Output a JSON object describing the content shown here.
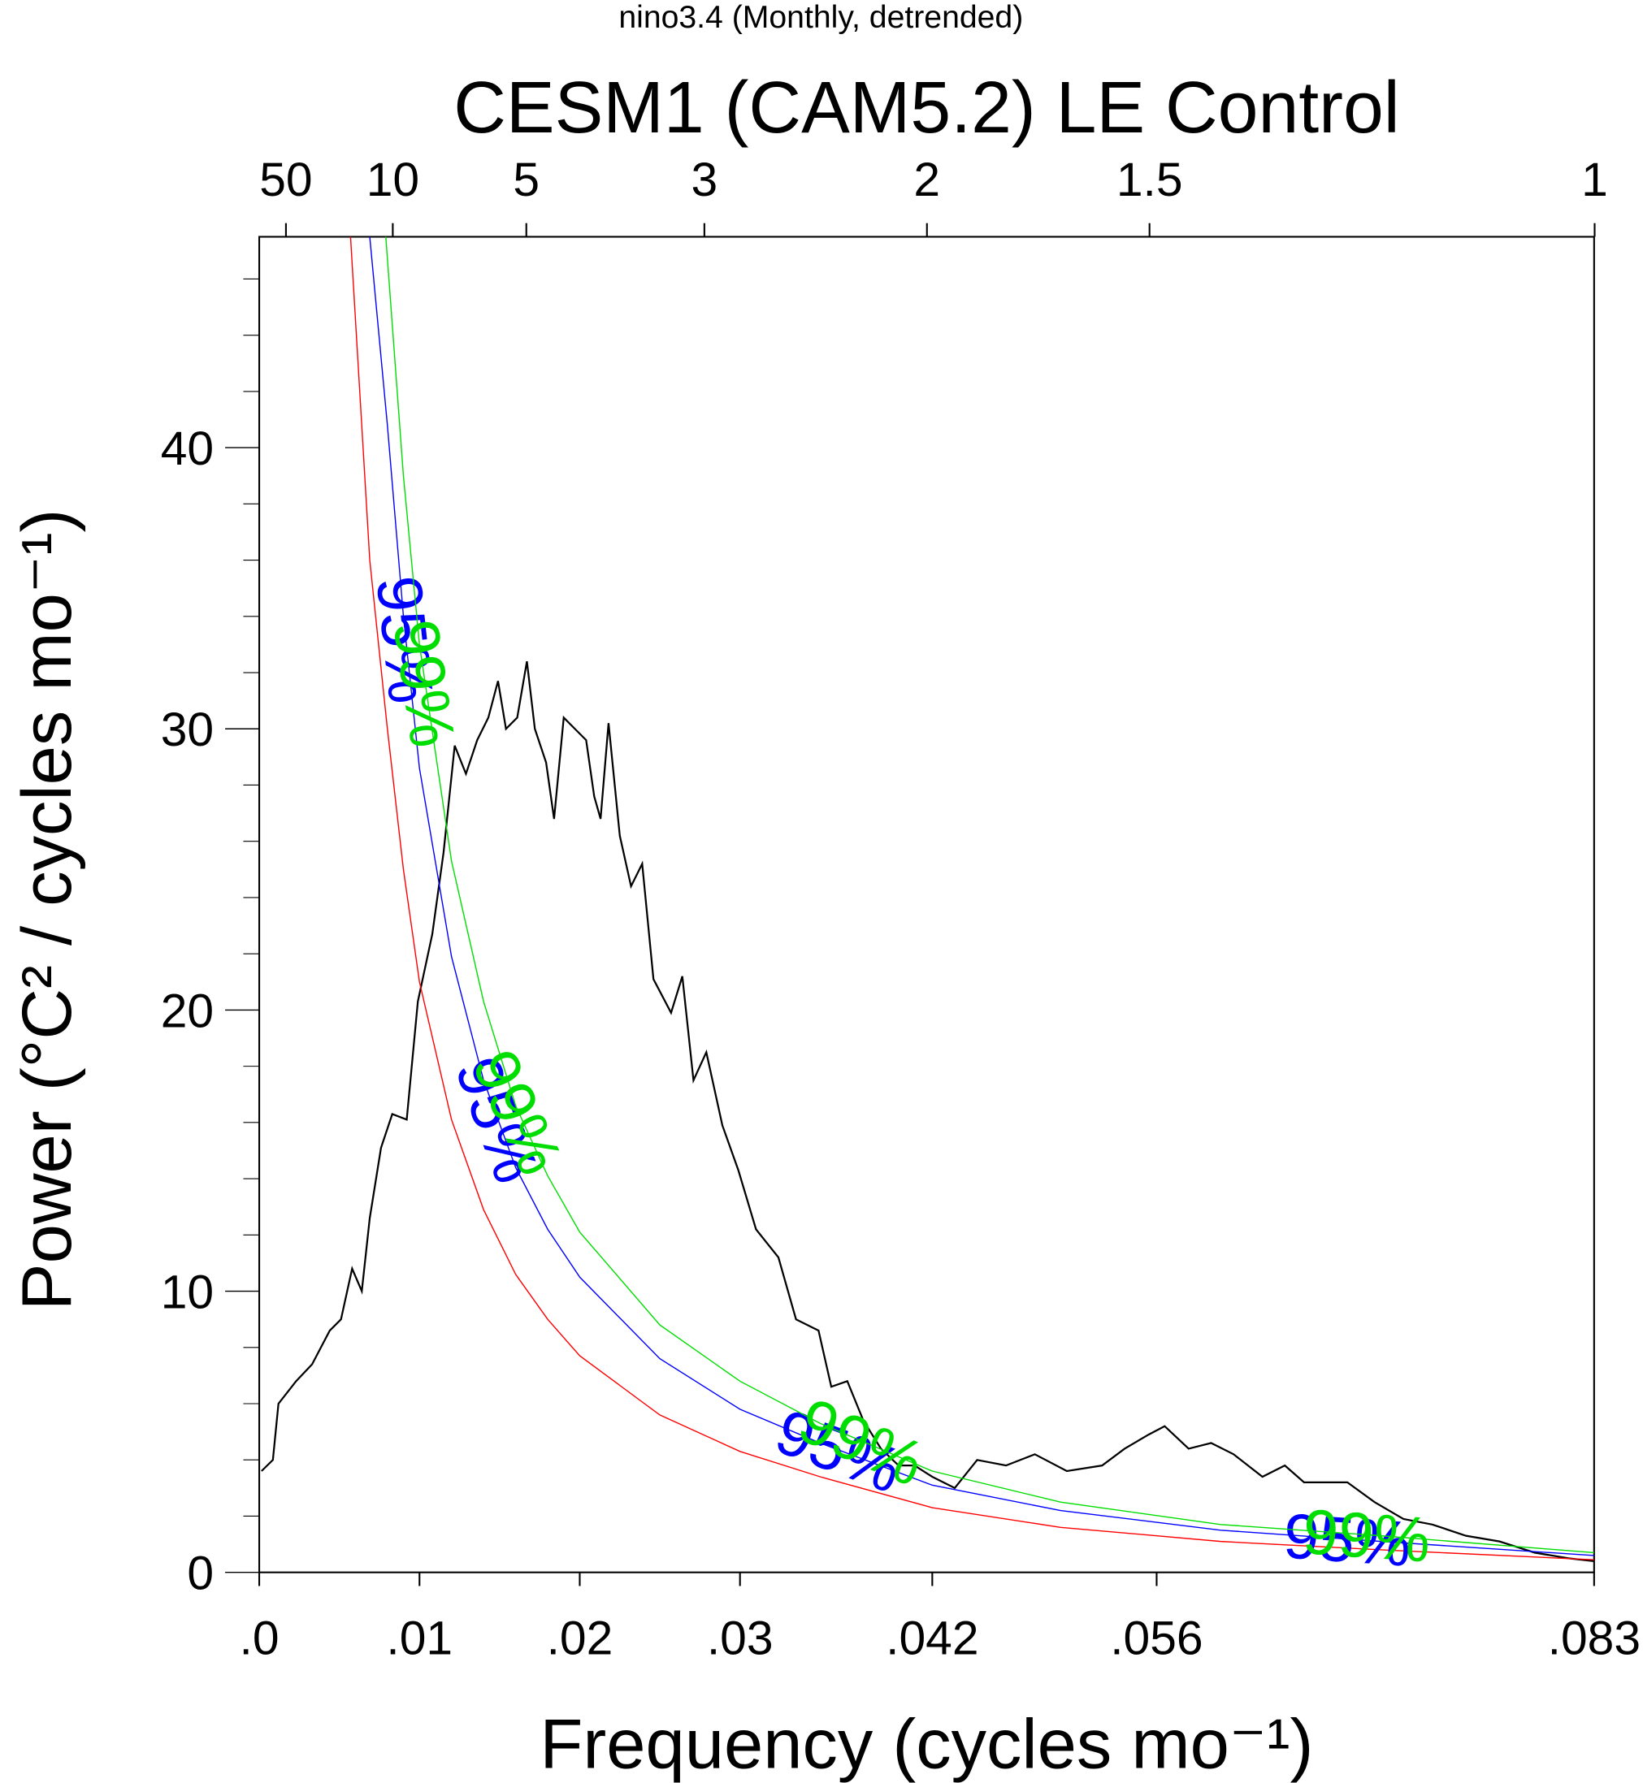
{
  "chart_data": {
    "type": "line",
    "subtitle": "nino3.4 (Monthly, detrended)",
    "title": "CESM1 (CAM5.2) LE Control",
    "xlabel": "Frequency (cycles mo⁻¹)",
    "ylabel": "Power (°C² / cycles mo⁻¹)",
    "xlim": [
      0,
      0.0833
    ],
    "ylim": [
      0,
      47.5
    ],
    "xticks": [
      {
        "value": 0,
        "label": ".0"
      },
      {
        "value": 0.01,
        "label": ".01"
      },
      {
        "value": 0.02,
        "label": ".02"
      },
      {
        "value": 0.03,
        "label": ".03"
      },
      {
        "value": 0.042,
        "label": ".042"
      },
      {
        "value": 0.056,
        "label": ".056"
      },
      {
        "value": 0.0833,
        "label": ".083"
      }
    ],
    "x2ticks": [
      {
        "value": 0.001667,
        "label": "50"
      },
      {
        "value": 0.008333,
        "label": "10"
      },
      {
        "value": 0.016667,
        "label": "5"
      },
      {
        "value": 0.027778,
        "label": "3"
      },
      {
        "value": 0.041667,
        "label": "2"
      },
      {
        "value": 0.055556,
        "label": "1.5"
      },
      {
        "value": 0.083333,
        "label": "1"
      }
    ],
    "yticks": [
      0,
      10,
      20,
      30,
      40
    ],
    "yminorticks": [
      2,
      4,
      6,
      8,
      12,
      14,
      16,
      18,
      22,
      24,
      26,
      28,
      32,
      34,
      36,
      38,
      42,
      44,
      46
    ],
    "series": [
      {
        "color": "#000000",
        "x": [
          0.00014,
          0.00085,
          0.0012,
          0.0023,
          0.0033,
          0.0044,
          0.0051,
          0.0058,
          0.0064,
          0.0069,
          0.0076,
          0.0083,
          0.0092,
          0.0099,
          0.0108,
          0.0115,
          0.0122,
          0.0129,
          0.0136,
          0.0143,
          0.0149,
          0.0154,
          0.0161,
          0.0167,
          0.0172,
          0.0179,
          0.0184,
          0.019,
          0.0197,
          0.0204,
          0.0209,
          0.0213,
          0.0218,
          0.0225,
          0.0232,
          0.0239,
          0.0246,
          0.0257,
          0.0264,
          0.0271,
          0.0279,
          0.0289,
          0.0299,
          0.031,
          0.0324,
          0.0335,
          0.0349,
          0.0357,
          0.0367,
          0.0377,
          0.0388,
          0.0399,
          0.0409,
          0.042,
          0.0434,
          0.0448,
          0.0466,
          0.0484,
          0.0504,
          0.0526,
          0.054,
          0.0555,
          0.0565,
          0.058,
          0.0594,
          0.0608,
          0.0626,
          0.064,
          0.0652,
          0.0665,
          0.0679,
          0.0696,
          0.0714,
          0.0732,
          0.0753,
          0.0774,
          0.0796,
          0.0817,
          0.0833
        ],
        "values": [
          3.6,
          4.0,
          6.0,
          6.8,
          7.4,
          8.6,
          9.0,
          10.8,
          10.0,
          12.6,
          15.1,
          16.3,
          16.1,
          20.3,
          22.7,
          25.6,
          29.4,
          28.4,
          29.6,
          30.4,
          31.7,
          30.0,
          30.4,
          32.4,
          30.0,
          28.8,
          26.8,
          30.4,
          30.0,
          29.6,
          27.6,
          26.8,
          30.2,
          26.2,
          24.4,
          25.2,
          21.1,
          19.9,
          21.2,
          17.5,
          18.5,
          15.9,
          14.3,
          12.2,
          11.2,
          9.0,
          8.6,
          6.6,
          6.8,
          5.4,
          4.4,
          3.8,
          3.8,
          3.4,
          3.0,
          4.0,
          3.8,
          4.2,
          3.6,
          3.8,
          4.4,
          4.9,
          5.2,
          4.4,
          4.6,
          4.2,
          3.4,
          3.8,
          3.2,
          3.2,
          3.2,
          2.5,
          1.9,
          1.7,
          1.3,
          1.1,
          0.7,
          0.5,
          0.4
        ]
      },
      {
        "color": "#ff0000",
        "x": [
          0.0057,
          0.0069,
          0.008,
          0.009,
          0.01,
          0.012,
          0.014,
          0.016,
          0.018,
          0.02,
          0.025,
          0.03,
          0.035,
          0.042,
          0.05,
          0.06,
          0.07,
          0.0833
        ],
        "values": [
          47.5,
          36,
          30,
          25,
          21,
          16.1,
          12.9,
          10.6,
          9.0,
          7.7,
          5.6,
          4.3,
          3.4,
          2.3,
          1.6,
          1.1,
          0.8,
          0.45
        ]
      },
      {
        "color": "#0000ff",
        "label": "95%",
        "x": [
          0.0069,
          0.008,
          0.009,
          0.01,
          0.012,
          0.014,
          0.016,
          0.018,
          0.02,
          0.025,
          0.03,
          0.035,
          0.042,
          0.05,
          0.06,
          0.07,
          0.0833
        ],
        "values": [
          47.5,
          40.8,
          34,
          28.6,
          21.9,
          17.5,
          14.4,
          12.2,
          10.5,
          7.6,
          5.8,
          4.6,
          3.1,
          2.2,
          1.5,
          1.1,
          0.6
        ]
      },
      {
        "color": "#00dd00",
        "label": "99%",
        "x": [
          0.0079,
          0.009,
          0.01,
          0.012,
          0.014,
          0.016,
          0.018,
          0.02,
          0.025,
          0.03,
          0.035,
          0.042,
          0.05,
          0.06,
          0.07,
          0.0833
        ],
        "values": [
          47.5,
          39,
          33,
          25.3,
          20.3,
          16.6,
          14.1,
          12.1,
          8.8,
          6.8,
          5.3,
          3.6,
          2.5,
          1.7,
          1.3,
          0.7
        ]
      }
    ]
  }
}
